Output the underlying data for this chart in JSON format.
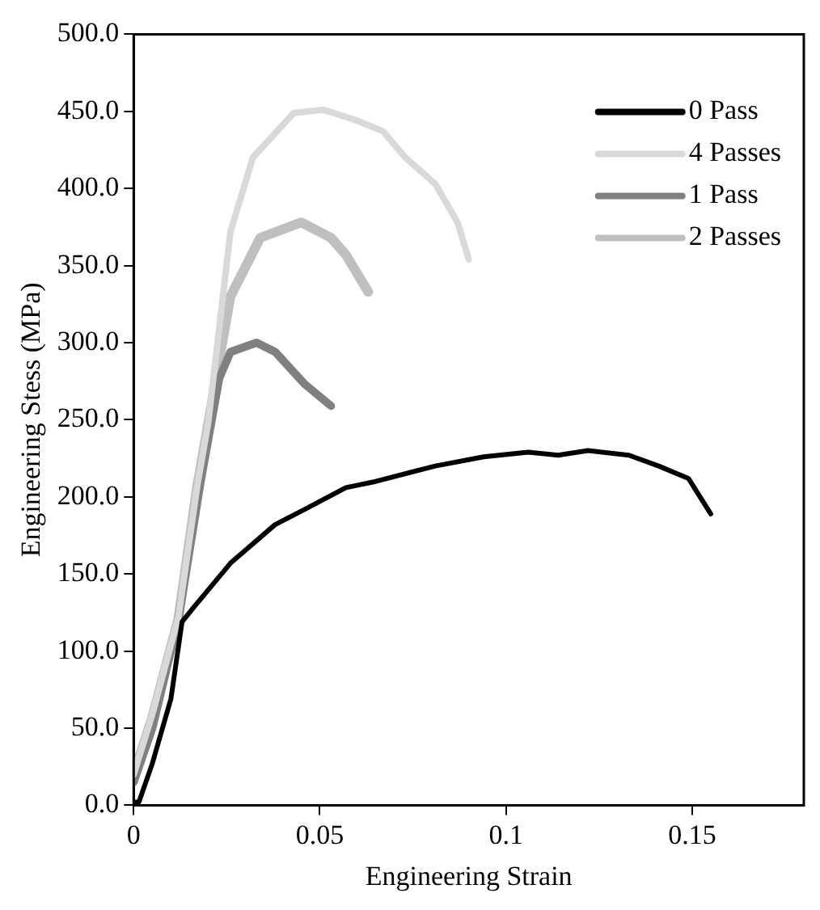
{
  "chart_data": {
    "type": "line",
    "xlabel": "Engineering Strain",
    "ylabel": "Engineering Stess (MPa)",
    "xlim": [
      0,
      0.18
    ],
    "xticks": [
      0,
      0.05,
      0.1,
      0.15
    ],
    "ylim": [
      0,
      500
    ],
    "yticks": [
      {
        "value": 0,
        "label": "0.0"
      },
      {
        "value": 50,
        "label": "50.0"
      },
      {
        "value": 100,
        "label": "100.0"
      },
      {
        "value": 150,
        "label": "150.0"
      },
      {
        "value": 200,
        "label": "200.0"
      },
      {
        "value": 250,
        "label": "250.0"
      },
      {
        "value": 300,
        "label": "300.0"
      },
      {
        "value": 350,
        "label": "350.0"
      },
      {
        "value": 400,
        "label": "400.0"
      },
      {
        "value": 450,
        "label": "450.0"
      },
      {
        "value": 500,
        "label": "500.0"
      }
    ],
    "grid": false,
    "legend": "top right",
    "marker": "none",
    "line_style": "solid",
    "series": [
      {
        "name": "0 Pass",
        "color": "#000000",
        "x": [
          0,
          0.0014,
          0.005,
          0.01,
          0.013,
          0.016,
          0.026,
          0.038,
          0.046,
          0.057,
          0.065,
          0.081,
          0.094,
          0.106,
          0.114,
          0.122,
          0.133,
          0.141,
          0.149,
          0.155
        ],
        "values": [
          2,
          2,
          27,
          69,
          119,
          128,
          157,
          182,
          192,
          206,
          210,
          220,
          226,
          229,
          227,
          230,
          227,
          220,
          212,
          189
        ]
      },
      {
        "name": "4 Passes",
        "color": "#d9d9d9",
        "x": [
          0,
          0.005,
          0.012,
          0.017,
          0.02,
          0.026,
          0.032,
          0.043,
          0.051,
          0.06,
          0.067,
          0.073,
          0.081,
          0.087,
          0.09
        ],
        "values": [
          20,
          59,
          122,
          206,
          248,
          372,
          420,
          449,
          451,
          444,
          437,
          420,
          403,
          378,
          354
        ]
      },
      {
        "name": "1 Pass",
        "color": "#808080",
        "x": [
          0,
          0.005,
          0.012,
          0.018,
          0.023,
          0.026,
          0.033,
          0.038,
          0.046,
          0.053
        ],
        "values": [
          15,
          50,
          120,
          210,
          277,
          294,
          300,
          294,
          273,
          259
        ]
      },
      {
        "name": "2 Passes",
        "color": "#bfbfbf",
        "x": [
          0,
          0.005,
          0.012,
          0.017,
          0.026,
          0.034,
          0.045,
          0.053,
          0.057,
          0.063
        ],
        "values": [
          20,
          57,
          121,
          206,
          330,
          368,
          378,
          368,
          357,
          333
        ]
      }
    ]
  }
}
